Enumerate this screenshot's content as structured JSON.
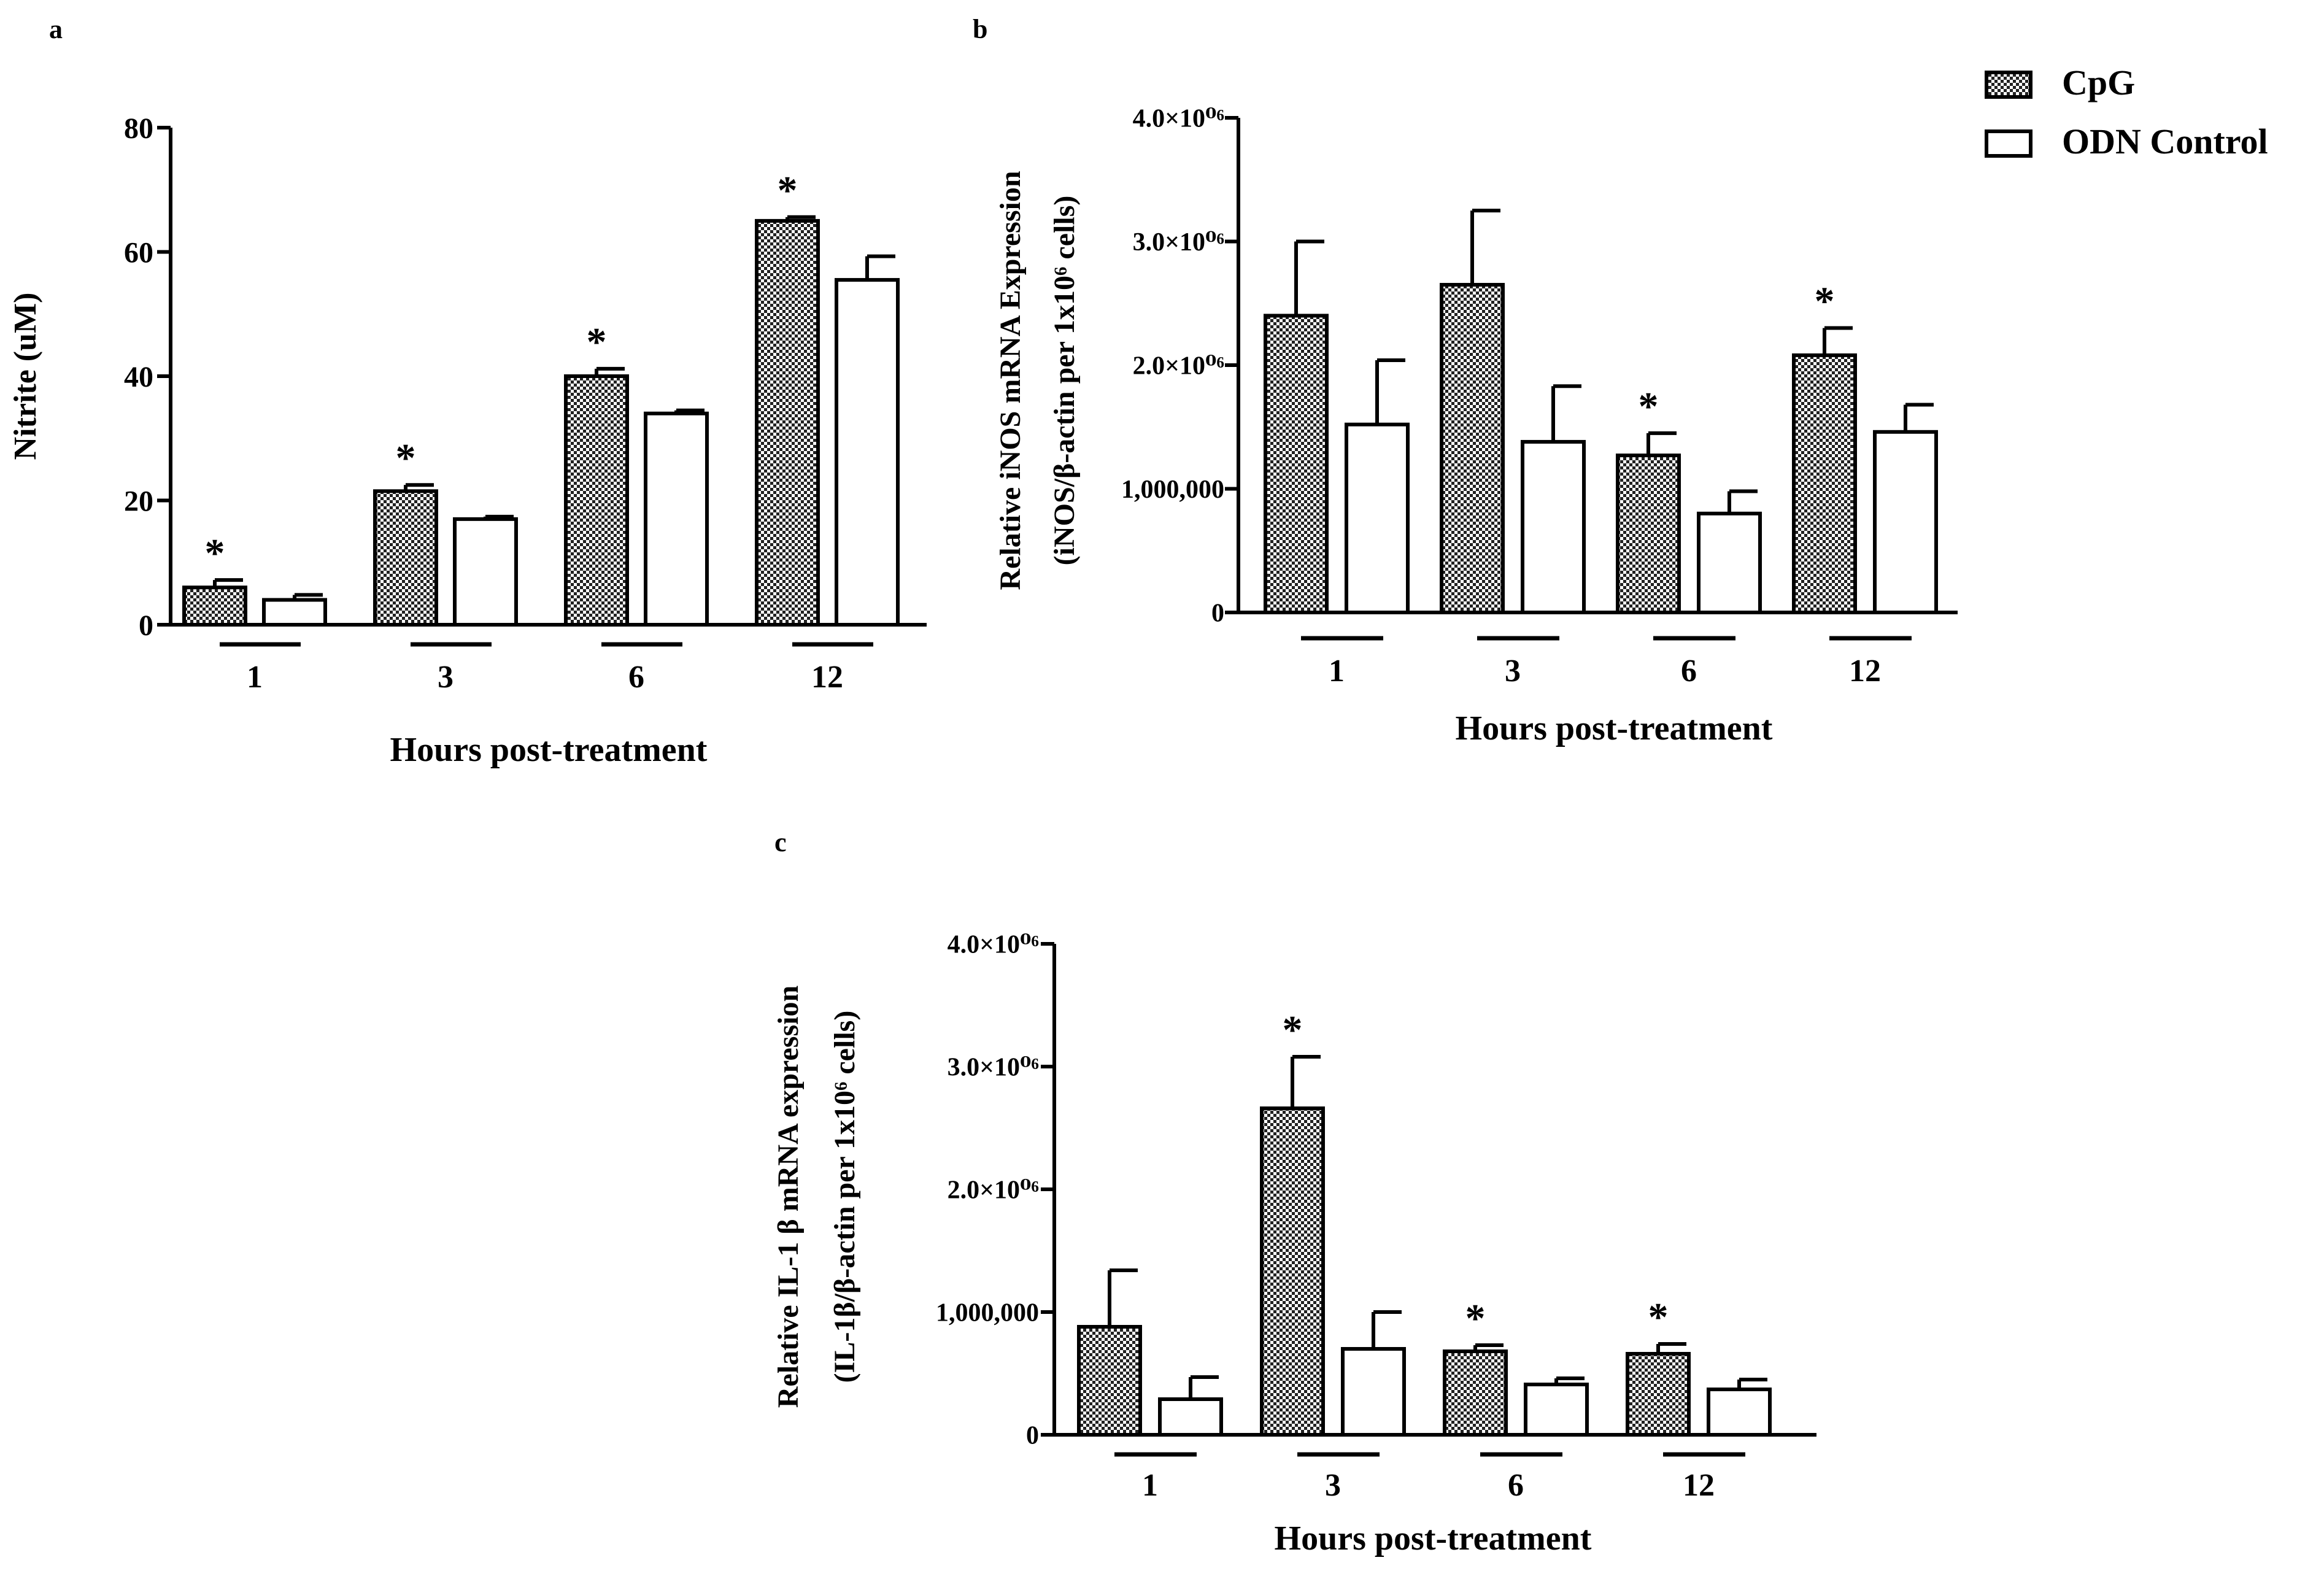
{
  "colors": {
    "cpg_fill": "#4a4a4a",
    "control_fill": "#ffffff",
    "stroke": "#000000"
  },
  "legend": {
    "items": [
      "CpG",
      "ODN Control"
    ]
  },
  "chart_data": [
    {
      "type": "bar",
      "panel": "a",
      "title": "",
      "xlabel": "Hours post-treatment",
      "ylabel_lines": [
        "Nitrite (uM)"
      ],
      "categories": [
        "1",
        "3",
        "6",
        "12"
      ],
      "ylim": [
        0,
        80
      ],
      "yticks": [
        0,
        20,
        40,
        60,
        80
      ],
      "ytick_labels": [
        "0",
        "20",
        "40",
        "60",
        "80"
      ],
      "series": [
        {
          "name": "CpG",
          "values": [
            6,
            21.5,
            40,
            65
          ],
          "errors": [
            1.2,
            1.0,
            1.2,
            0.6
          ]
        },
        {
          "name": "ODN Control",
          "values": [
            4,
            17,
            34,
            55.5
          ],
          "errors": [
            0.8,
            0.4,
            0.5,
            3.8
          ]
        }
      ],
      "significance": [
        "*",
        "*",
        "*",
        "*"
      ]
    },
    {
      "type": "bar",
      "panel": "b",
      "title": "",
      "xlabel": "Hours post-treatment",
      "ylabel_lines": [
        "Relative iNOS mRNA Expression",
        "(iNOS/β-actin per 1x10⁶ cells)"
      ],
      "categories": [
        "1",
        "3",
        "6",
        "12"
      ],
      "ylim": [
        0,
        4000000
      ],
      "yticks": [
        0,
        1000000,
        2000000,
        3000000,
        4000000
      ],
      "ytick_labels": [
        "0",
        "1,000,000",
        "2.0×10⁰⁶",
        "3.0×10⁰⁶",
        "4.0×10⁰⁶"
      ],
      "series": [
        {
          "name": "CpG",
          "values": [
            2400000,
            2650000,
            1270000,
            2080000
          ],
          "errors": [
            600000,
            600000,
            180000,
            220000
          ]
        },
        {
          "name": "ODN Control",
          "values": [
            1520000,
            1380000,
            800000,
            1460000
          ],
          "errors": [
            520000,
            450000,
            180000,
            220000
          ]
        }
      ],
      "significance": [
        "",
        "",
        "*",
        "*"
      ]
    },
    {
      "type": "bar",
      "panel": "c",
      "title": "",
      "xlabel": "Hours post-treatment",
      "ylabel_lines": [
        "Relative IL-1 β mRNA expression",
        "(IL-1β/β-actin per 1x10⁶ cells)"
      ],
      "categories": [
        "1",
        "3",
        "6",
        "12"
      ],
      "ylim": [
        0,
        4000000
      ],
      "yticks": [
        0,
        1000000,
        2000000,
        3000000,
        4000000
      ],
      "ytick_labels": [
        "0",
        "1,000,000",
        "2.0×10⁰⁶",
        "3.0×10⁰⁶",
        "4.0×10⁰⁶"
      ],
      "series": [
        {
          "name": "CpG",
          "values": [
            880000,
            2660000,
            680000,
            660000
          ],
          "errors": [
            460000,
            420000,
            50000,
            80000
          ]
        },
        {
          "name": "ODN Control",
          "values": [
            290000,
            700000,
            410000,
            370000
          ],
          "errors": [
            180000,
            300000,
            50000,
            80000
          ]
        }
      ],
      "significance": [
        "",
        "*",
        "*",
        "*"
      ]
    }
  ]
}
